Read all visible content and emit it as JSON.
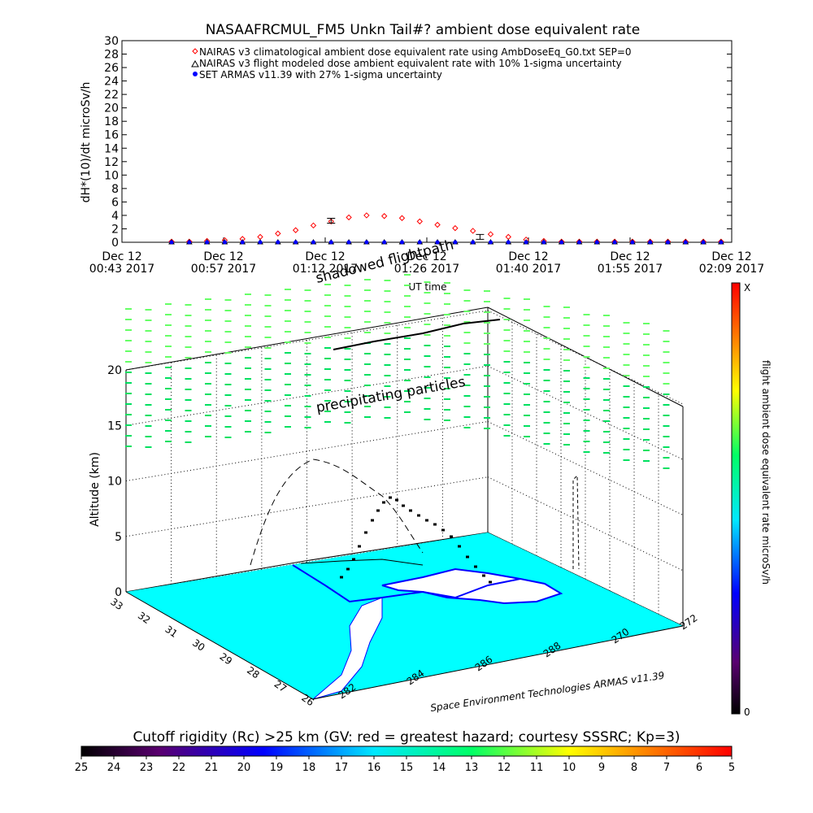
{
  "colors": {
    "ground": "#00ffff",
    "sea": "#ffffff",
    "coast": "#0000ff",
    "climatological": "#ff0000",
    "modeled": "#000000",
    "armas": "#0000ff",
    "particle_main": "#00e060",
    "particle_light": "#66ff66"
  },
  "chart_data": [
    {
      "type": "line",
      "title": "NASAAFRCMUL_FM5 Unkn Tail#? ambient dose equivalent rate",
      "ylabel": "dH*(10)/dt microSv/h",
      "xlabel": "UT time",
      "ylim": [
        0,
        30
      ],
      "xlim": [
        "00:43",
        "02:09"
      ],
      "y_ticks": [
        "0",
        "2",
        "4",
        "6",
        "8",
        "10",
        "12",
        "14",
        "16",
        "18",
        "20",
        "22",
        "24",
        "26",
        "28",
        "30"
      ],
      "x_ticks": [
        {
          "line1": "Dec 12",
          "line2": "00:43 2017"
        },
        {
          "line1": "Dec 12",
          "line2": "00:57 2017"
        },
        {
          "line1": "Dec 12",
          "line2": "01:12 2017"
        },
        {
          "line1": "Dec 12",
          "line2": "01:26 2017"
        },
        {
          "line1": "Dec 12",
          "line2": "01:40 2017"
        },
        {
          "line1": "Dec 12",
          "line2": "01:55 2017"
        },
        {
          "line1": "Dec 12",
          "line2": "02:09 2017"
        }
      ],
      "legend": [
        "NAIRAS v3 climatological ambient dose equivalent rate using AmbDoseEq_G0.txt SEP=0",
        "NAIRAS v3 flight modeled dose ambient equivalent rate with 10% 1-sigma uncertainty",
        "SET ARMAS v11.39 with 27% 1-sigma uncertainty"
      ],
      "annotations": [
        "shadowed flightpath"
      ],
      "series": [
        {
          "name": "NAIRAS v3 climatological ambient dose equivalent rate using AmbDoseEq_G0.txt SEP=0",
          "marker": "diamond",
          "x_minutes_after_0043": [
            7,
            9.5,
            12,
            14.5,
            17,
            19.5,
            22,
            24.5,
            27,
            29.5,
            32,
            34.5,
            37,
            39.5,
            42,
            44.5,
            47,
            49.5,
            52,
            54.5,
            57,
            59.5,
            62,
            64.5,
            67,
            69.5,
            72,
            74.5,
            77,
            79.5,
            82,
            84.5
          ],
          "values": [
            0.1,
            0.1,
            0.2,
            0.3,
            0.5,
            0.8,
            1.3,
            1.8,
            2.5,
            3.1,
            3.7,
            4.0,
            3.9,
            3.6,
            3.1,
            2.6,
            2.1,
            1.7,
            1.2,
            0.8,
            0.4,
            0.2,
            0.1,
            0.1,
            0.1,
            0.1,
            0.1,
            0.1,
            0.1,
            0.1,
            0.1,
            0.1
          ]
        },
        {
          "name": "NAIRAS v3 flight modeled dose ambient equivalent rate with 10% 1-sigma uncertainty",
          "marker": "triangle",
          "x_minutes_after_0043": [
            7,
            9.5,
            12,
            14.5,
            17,
            19.5,
            22,
            24.5,
            27,
            29.5,
            32,
            34.5,
            37,
            39.5,
            42,
            44.5,
            47,
            49.5,
            52,
            54.5,
            57,
            59.5,
            62,
            64.5,
            67,
            69.5,
            72,
            74.5,
            77,
            79.5,
            82,
            84.5
          ],
          "values": [
            0,
            0,
            0,
            0,
            0,
            0,
            0,
            0,
            0,
            0,
            0,
            0,
            0,
            0,
            0,
            0,
            0,
            0,
            0,
            0,
            0,
            0,
            0,
            0,
            0,
            0,
            0,
            0,
            0,
            0,
            0,
            0
          ]
        },
        {
          "name": "SET ARMAS v11.39 with 27% 1-sigma uncertainty",
          "marker": "dot",
          "x_minutes_after_0043": [
            7,
            9.5,
            12,
            14.5,
            17,
            19.5,
            22,
            24.5,
            27,
            29.5,
            32,
            34.5,
            37,
            39.5,
            42,
            44.5,
            47,
            49.5,
            52,
            54.5,
            57,
            59.5,
            62,
            64.5,
            67,
            69.5,
            72,
            74.5,
            77,
            79.5,
            82,
            84.5
          ],
          "values": [
            0,
            0,
            0,
            0,
            0,
            0,
            0,
            0,
            0,
            0,
            0,
            0,
            0,
            0,
            0,
            0,
            0,
            0,
            0,
            0,
            0,
            0,
            0,
            0,
            0,
            0,
            0,
            0,
            0,
            0,
            0,
            0
          ]
        },
        {
          "name": "",
          "marker": "error-bar",
          "x_minutes_after_0043": [
            29.5,
            50.5
          ],
          "values": [
            3.2,
            0.8
          ]
        }
      ]
    },
    {
      "type": "scatter",
      "zlabel": "Altitude (km)",
      "z_ticks": [
        "0",
        "5",
        "10",
        "15",
        "20"
      ],
      "zlim": [
        0,
        20
      ],
      "lat_ticks": [
        "33",
        "32",
        "31",
        "30",
        "29",
        "28",
        "27",
        "26"
      ],
      "lon_ticks": [
        "282",
        "284",
        "286",
        "288",
        "270",
        "272"
      ],
      "annotations": [
        "precipitating particles",
        "Space Environment Technologies ARMAS v11.39"
      ]
    }
  ],
  "right_colorbar": {
    "label": "flight ambient dose equivalent rate microSv/h",
    "top_label": "X",
    "bottom_label": "0"
  },
  "bottom_colorbar": {
    "title": "Cutoff rigidity (Rc) >25 km (GV: red = greatest hazard; courtesy SSSRC; Kp=3)",
    "ticks": [
      "25",
      "24",
      "23",
      "22",
      "21",
      "20",
      "19",
      "18",
      "17",
      "16",
      "15",
      "14",
      "13",
      "12",
      "11",
      "10",
      "9",
      "8",
      "7",
      "6",
      "5"
    ]
  }
}
